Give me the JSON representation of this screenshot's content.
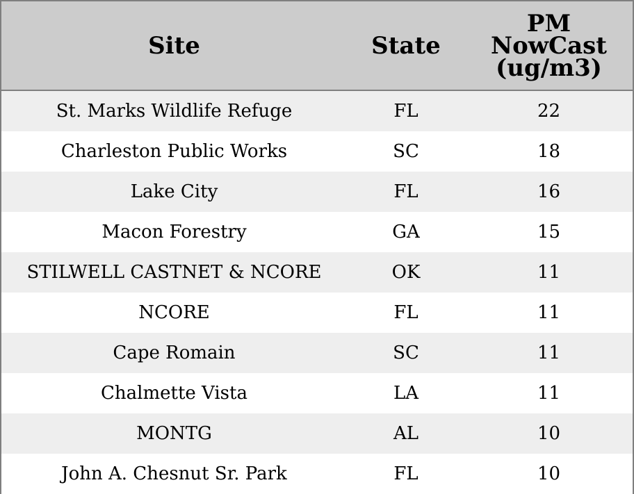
{
  "chart_data": {
    "type": "table",
    "columns": [
      "Site",
      "State",
      "PM\nNowCast\n(ug/m3)"
    ],
    "rows": [
      [
        "St. Marks Wildlife Refuge",
        "FL",
        "22"
      ],
      [
        "Charleston Public Works",
        "SC",
        "18"
      ],
      [
        "Lake City",
        "FL",
        "16"
      ],
      [
        "Macon Forestry",
        "GA",
        "15"
      ],
      [
        "STILWELL CASTNET & NCORE",
        "OK",
        "11"
      ],
      [
        "NCORE",
        "FL",
        "11"
      ],
      [
        "Cape Romain",
        "SC",
        "11"
      ],
      [
        "Chalmette Vista",
        "LA",
        "11"
      ],
      [
        "MONTG",
        "AL",
        "10"
      ],
      [
        "John A. Chesnut Sr. Park",
        "FL",
        "10"
      ]
    ]
  },
  "colors": {
    "header_bg": "#cccccc",
    "stripe_bg": "#eeeeee",
    "row_bg": "#ffffff",
    "border": "#7f7f7f"
  }
}
